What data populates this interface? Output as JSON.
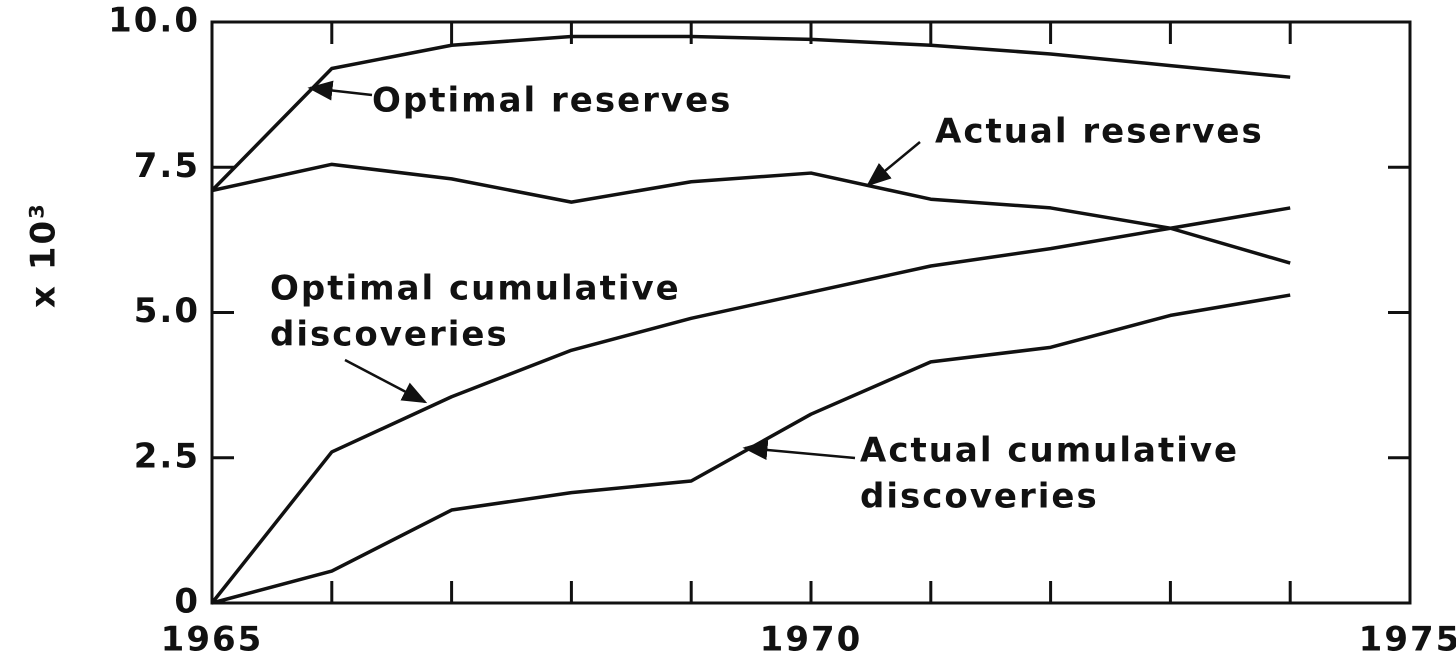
{
  "chart_data": {
    "type": "line",
    "y_label": "x 10³",
    "x": [
      1965,
      1966,
      1967,
      1968,
      1969,
      1970,
      1971,
      1972,
      1973,
      1974
    ],
    "series": [
      {
        "color": "#111111",
        "values": [
          7.1,
          9.2,
          9.6,
          9.75,
          9.75,
          9.7,
          9.6,
          9.45,
          9.25,
          9.05
        ]
      },
      {
        "color": "#111111",
        "values": [
          7.1,
          7.55,
          7.3,
          6.9,
          7.25,
          7.4,
          6.95,
          6.8,
          6.45,
          5.85
        ]
      },
      {
        "color": "#111111",
        "values": [
          0,
          2.6,
          3.55,
          4.35,
          4.9,
          5.35,
          5.8,
          6.1,
          6.45,
          6.8
        ]
      },
      {
        "color": "#111111",
        "values": [
          0,
          0.55,
          1.6,
          1.9,
          2.1,
          3.25,
          4.15,
          4.4,
          4.95,
          5.3
        ]
      }
    ],
    "annotations": [
      {
        "lines": [
          "Optimal reserves"
        ]
      },
      {
        "lines": [
          "Actual reserves"
        ]
      },
      {
        "lines": [
          "Optimal cumulative",
          "discoveries"
        ]
      },
      {
        "lines": [
          "Actual cumulative",
          "discoveries"
        ]
      }
    ],
    "xlim": [
      1965,
      1975
    ],
    "xticks": [
      1965,
      1970,
      1975
    ],
    "xminorticks": [
      1966,
      1967,
      1968,
      1969,
      1971,
      1972,
      1973,
      1974
    ],
    "ylim": [
      0,
      10
    ],
    "yticks": [
      0,
      2.5,
      {
        "value": 5,
        "label": "5.0"
      },
      7.5,
      {
        "value": 10,
        "label": "10.0"
      }
    ],
    "grid": false
  }
}
